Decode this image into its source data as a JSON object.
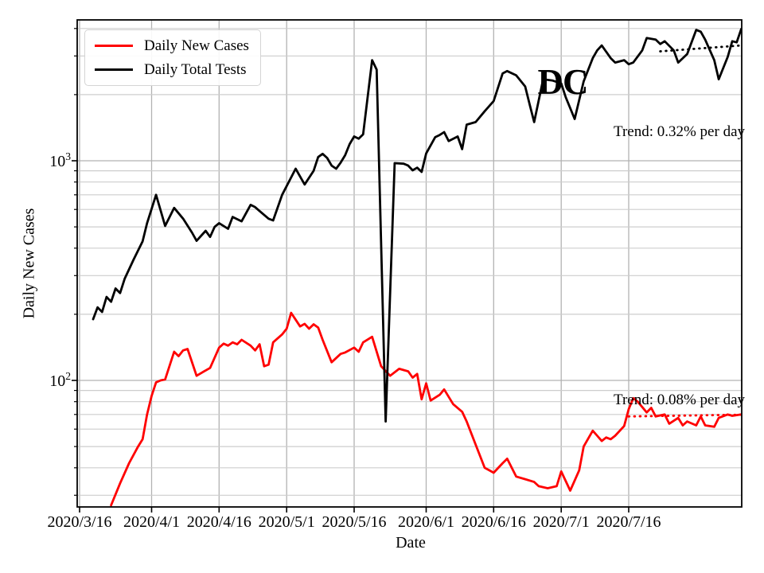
{
  "figure": {
    "state_label": "DC",
    "background": "#ffffff"
  },
  "chart_data": {
    "type": "line",
    "title": "",
    "xlabel": "Date",
    "ylabel": "Daily New Cases",
    "y_scale": "log",
    "ylim": [
      26.5,
      4380
    ],
    "x_range": [
      "2020/3/16",
      "2020/8/10"
    ],
    "grid": "both",
    "legend_position": "upper left",
    "x_ticks": [
      "2020/3/16",
      "2020/4/1",
      "2020/4/16",
      "2020/5/1",
      "2020/5/16",
      "2020/6/1",
      "2020/6/16",
      "2020/7/1",
      "2020/7/16"
    ],
    "y_ticks": [
      {
        "label": "10^3",
        "value": 1000
      },
      {
        "label": "10^2",
        "value": 100
      }
    ],
    "y_minor_gridlines": [
      30,
      40,
      50,
      60,
      70,
      80,
      90,
      200,
      300,
      400,
      500,
      600,
      700,
      800,
      900,
      2000,
      3000,
      4000
    ],
    "series": [
      {
        "name": "Daily New Cases",
        "color": "#ff0000",
        "points": [
          [
            "2020/3/23",
            27
          ],
          [
            "2020/3/25",
            34
          ],
          [
            "2020/3/27",
            42
          ],
          [
            "2020/3/29",
            50
          ],
          [
            "2020/3/30",
            54
          ],
          [
            "2020/3/31",
            70
          ],
          [
            "2020/4/1",
            85
          ],
          [
            "2020/4/2",
            98
          ],
          [
            "2020/4/3",
            100
          ],
          [
            "2020/4/4",
            101
          ],
          [
            "2020/4/6",
            135
          ],
          [
            "2020/4/7",
            129
          ],
          [
            "2020/4/8",
            137
          ],
          [
            "2020/4/9",
            139
          ],
          [
            "2020/4/11",
            105
          ],
          [
            "2020/4/12",
            108
          ],
          [
            "2020/4/14",
            114
          ],
          [
            "2020/4/16",
            141
          ],
          [
            "2020/4/17",
            147
          ],
          [
            "2020/4/18",
            144
          ],
          [
            "2020/4/19",
            149
          ],
          [
            "2020/4/20",
            146
          ],
          [
            "2020/4/21",
            153
          ],
          [
            "2020/4/23",
            144
          ],
          [
            "2020/4/24",
            137
          ],
          [
            "2020/4/25",
            146
          ],
          [
            "2020/4/26",
            116
          ],
          [
            "2020/4/27",
            118
          ],
          [
            "2020/4/28",
            149
          ],
          [
            "2020/4/30",
            162
          ],
          [
            "2020/5/1",
            172
          ],
          [
            "2020/5/2",
            203
          ],
          [
            "2020/5/3",
            189
          ],
          [
            "2020/5/4",
            176
          ],
          [
            "2020/5/5",
            181
          ],
          [
            "2020/5/6",
            172
          ],
          [
            "2020/5/7",
            180
          ],
          [
            "2020/5/8",
            174
          ],
          [
            "2020/5/9",
            153
          ],
          [
            "2020/5/11",
            121
          ],
          [
            "2020/5/13",
            132
          ],
          [
            "2020/5/14",
            134
          ],
          [
            "2020/5/16",
            141
          ],
          [
            "2020/5/17",
            135
          ],
          [
            "2020/5/18",
            149
          ],
          [
            "2020/5/20",
            158
          ],
          [
            "2020/5/22",
            116
          ],
          [
            "2020/5/24",
            105
          ],
          [
            "2020/5/26",
            113
          ],
          [
            "2020/5/28",
            110
          ],
          [
            "2020/5/29",
            103
          ],
          [
            "2020/5/30",
            107
          ],
          [
            "2020/5/31",
            82
          ],
          [
            "2020/6/1",
            97
          ],
          [
            "2020/6/2",
            81
          ],
          [
            "2020/6/4",
            86
          ],
          [
            "2020/6/5",
            91
          ],
          [
            "2020/6/7",
            78
          ],
          [
            "2020/6/9",
            72
          ],
          [
            "2020/6/10",
            65
          ],
          [
            "2020/6/12",
            51
          ],
          [
            "2020/6/14",
            40
          ],
          [
            "2020/6/15",
            39
          ],
          [
            "2020/6/16",
            38
          ],
          [
            "2020/6/18",
            42
          ],
          [
            "2020/6/19",
            44
          ],
          [
            "2020/6/21",
            36.5
          ],
          [
            "2020/6/23",
            35.5
          ],
          [
            "2020/6/25",
            34.5
          ],
          [
            "2020/6/26",
            33
          ],
          [
            "2020/6/28",
            32.3
          ],
          [
            "2020/6/30",
            33
          ],
          [
            "2020/7/1",
            38.5
          ],
          [
            "2020/7/3",
            31.5
          ],
          [
            "2020/7/5",
            39
          ],
          [
            "2020/7/6",
            50
          ],
          [
            "2020/7/8",
            59
          ],
          [
            "2020/7/9",
            56
          ],
          [
            "2020/7/10",
            53
          ],
          [
            "2020/7/11",
            55
          ],
          [
            "2020/7/12",
            54
          ],
          [
            "2020/7/13",
            56
          ],
          [
            "2020/7/15",
            62
          ],
          [
            "2020/7/16",
            74
          ],
          [
            "2020/7/17",
            83
          ],
          [
            "2020/7/18",
            80
          ],
          [
            "2020/7/20",
            71.5
          ],
          [
            "2020/7/21",
            75
          ],
          [
            "2020/7/22",
            68.5
          ],
          [
            "2020/7/24",
            70
          ],
          [
            "2020/7/25",
            63.5
          ],
          [
            "2020/7/27",
            67.5
          ],
          [
            "2020/7/28",
            62.4
          ],
          [
            "2020/7/29",
            65
          ],
          [
            "2020/7/31",
            62.4
          ],
          [
            "2020/8/1",
            68.5
          ],
          [
            "2020/8/2",
            62.4
          ],
          [
            "2020/8/4",
            61.5
          ],
          [
            "2020/8/5",
            67.5
          ],
          [
            "2020/8/7",
            70
          ],
          [
            "2020/8/8",
            69
          ],
          [
            "2020/8/10",
            70
          ]
        ]
      },
      {
        "name": "Daily Total Tests",
        "color": "#000000",
        "points": [
          [
            "2020/3/19",
            190
          ],
          [
            "2020/3/20",
            215
          ],
          [
            "2020/3/21",
            205
          ],
          [
            "2020/3/22",
            240
          ],
          [
            "2020/3/23",
            228
          ],
          [
            "2020/3/24",
            262
          ],
          [
            "2020/3/25",
            250
          ],
          [
            "2020/3/26",
            290
          ],
          [
            "2020/3/28",
            355
          ],
          [
            "2020/3/30",
            430
          ],
          [
            "2020/3/31",
            520
          ],
          [
            "2020/4/2",
            700
          ],
          [
            "2020/4/4",
            505
          ],
          [
            "2020/4/6",
            610
          ],
          [
            "2020/4/8",
            545
          ],
          [
            "2020/4/10",
            470
          ],
          [
            "2020/4/11",
            432
          ],
          [
            "2020/4/13",
            480
          ],
          [
            "2020/4/14",
            450
          ],
          [
            "2020/4/15",
            500
          ],
          [
            "2020/4/16",
            520
          ],
          [
            "2020/4/18",
            490
          ],
          [
            "2020/4/19",
            555
          ],
          [
            "2020/4/21",
            530
          ],
          [
            "2020/4/23",
            630
          ],
          [
            "2020/4/24",
            615
          ],
          [
            "2020/4/25",
            590
          ],
          [
            "2020/4/27",
            545
          ],
          [
            "2020/4/28",
            535
          ],
          [
            "2020/4/30",
            700
          ],
          [
            "2020/5/3",
            920
          ],
          [
            "2020/5/5",
            780
          ],
          [
            "2020/5/7",
            900
          ],
          [
            "2020/5/8",
            1040
          ],
          [
            "2020/5/9",
            1075
          ],
          [
            "2020/5/10",
            1030
          ],
          [
            "2020/5/11",
            950
          ],
          [
            "2020/5/12",
            920
          ],
          [
            "2020/5/13",
            980
          ],
          [
            "2020/5/14",
            1060
          ],
          [
            "2020/5/15",
            1190
          ],
          [
            "2020/5/16",
            1290
          ],
          [
            "2020/5/17",
            1260
          ],
          [
            "2020/5/18",
            1320
          ],
          [
            "2020/5/20",
            2870
          ],
          [
            "2020/5/21",
            2600
          ],
          [
            "2020/5/23",
            65
          ],
          [
            "2020/5/25",
            975
          ],
          [
            "2020/5/27",
            970
          ],
          [
            "2020/5/28",
            950
          ],
          [
            "2020/5/29",
            905
          ],
          [
            "2020/5/30",
            930
          ],
          [
            "2020/5/31",
            890
          ],
          [
            "2020/6/1",
            1080
          ],
          [
            "2020/6/3",
            1280
          ],
          [
            "2020/6/4",
            1310
          ],
          [
            "2020/6/5",
            1350
          ],
          [
            "2020/6/6",
            1230
          ],
          [
            "2020/6/8",
            1290
          ],
          [
            "2020/6/9",
            1130
          ],
          [
            "2020/6/10",
            1460
          ],
          [
            "2020/6/12",
            1500
          ],
          [
            "2020/6/14",
            1680
          ],
          [
            "2020/6/16",
            1870
          ],
          [
            "2020/6/18",
            2500
          ],
          [
            "2020/6/19",
            2560
          ],
          [
            "2020/6/21",
            2450
          ],
          [
            "2020/6/23",
            2180
          ],
          [
            "2020/6/24",
            1800
          ],
          [
            "2020/6/25",
            1500
          ],
          [
            "2020/6/27",
            2350
          ],
          [
            "2020/6/29",
            2320
          ],
          [
            "2020/7/1",
            2250
          ],
          [
            "2020/7/2",
            1950
          ],
          [
            "2020/7/4",
            1550
          ],
          [
            "2020/7/6",
            2300
          ],
          [
            "2020/7/8",
            2930
          ],
          [
            "2020/7/9",
            3180
          ],
          [
            "2020/7/10",
            3350
          ],
          [
            "2020/7/12",
            2930
          ],
          [
            "2020/7/13",
            2800
          ],
          [
            "2020/7/15",
            2870
          ],
          [
            "2020/7/16",
            2750
          ],
          [
            "2020/7/17",
            2800
          ],
          [
            "2020/7/19",
            3180
          ],
          [
            "2020/7/20",
            3620
          ],
          [
            "2020/7/22",
            3560
          ],
          [
            "2020/7/23",
            3400
          ],
          [
            "2020/7/24",
            3500
          ],
          [
            "2020/7/26",
            3180
          ],
          [
            "2020/7/27",
            2800
          ],
          [
            "2020/7/29",
            3060
          ],
          [
            "2020/7/31",
            3940
          ],
          [
            "2020/8/1",
            3870
          ],
          [
            "2020/8/2",
            3560
          ],
          [
            "2020/8/4",
            2870
          ],
          [
            "2020/8/5",
            2350
          ],
          [
            "2020/8/7",
            2970
          ],
          [
            "2020/8/8",
            3500
          ],
          [
            "2020/8/9",
            3460
          ],
          [
            "2020/8/10",
            3980
          ]
        ]
      }
    ],
    "trend_lines": [
      {
        "series": "Daily Total Tests",
        "style": "dotted",
        "color": "#000000",
        "label": "Trend: 0.32% per day",
        "points": [
          [
            "2020/7/23",
            3150
          ],
          [
            "2020/8/10",
            3350
          ]
        ]
      },
      {
        "series": "Daily New Cases",
        "style": "dotted",
        "color": "#ff0000",
        "label": "Trend: 0.08% per day",
        "points": [
          [
            "2020/7/16",
            68.5
          ],
          [
            "2020/8/10",
            69.8
          ]
        ]
      }
    ]
  }
}
